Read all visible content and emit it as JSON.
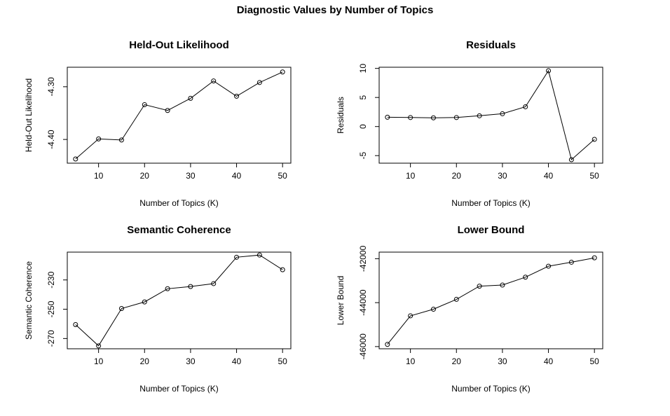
{
  "figure": {
    "title": "Diagnostic Values by Number of Topics"
  },
  "chart_data": [
    {
      "type": "line",
      "title": "Held-Out Likelihood",
      "xlabel": "Number of Topics (K)",
      "ylabel": "Held-Out Likelihood",
      "x": [
        5,
        10,
        15,
        20,
        25,
        30,
        35,
        40,
        45,
        50
      ],
      "values": [
        -4.437,
        -4.399,
        -4.401,
        -4.334,
        -4.345,
        -4.322,
        -4.289,
        -4.318,
        -4.292,
        -4.272
      ],
      "xlim": [
        3.2,
        51.8
      ],
      "ylim": [
        -4.445,
        -4.263
      ],
      "xticks": [
        10,
        20,
        30,
        40,
        50
      ],
      "yticks": [
        -4.4,
        -4.3
      ],
      "ytick_labels": [
        "-4.40",
        "-4.30"
      ],
      "legend": "none",
      "grid": false
    },
    {
      "type": "line",
      "title": "Residuals",
      "xlabel": "Number of Topics (K)",
      "ylabel": "Residuals",
      "x": [
        5,
        10,
        15,
        20,
        25,
        30,
        35,
        40,
        45,
        50
      ],
      "values": [
        1.6,
        1.55,
        1.5,
        1.55,
        1.85,
        2.2,
        3.4,
        9.6,
        -5.7,
        -2.2
      ],
      "xlim": [
        3.2,
        51.8
      ],
      "ylim": [
        -6.3,
        10.2
      ],
      "xticks": [
        10,
        20,
        30,
        40,
        50
      ],
      "yticks": [
        -5,
        0,
        5,
        10
      ],
      "ytick_labels": [
        "-5",
        "0",
        "5",
        "10"
      ],
      "legend": "none",
      "grid": false
    },
    {
      "type": "line",
      "title": "Semantic Coherence",
      "xlabel": "Number of Topics (K)",
      "ylabel": "Semantic Coherence",
      "x": [
        5,
        10,
        15,
        20,
        25,
        30,
        35,
        40,
        45,
        50
      ],
      "values": [
        -260.5,
        -275.0,
        -249.5,
        -245.0,
        -236.0,
        -234.5,
        -232.5,
        -214.5,
        -213.0,
        -223.0
      ],
      "xlim": [
        3.2,
        51.8
      ],
      "ylim": [
        -277.0,
        -211.0
      ],
      "xticks": [
        10,
        20,
        30,
        40,
        50
      ],
      "yticks": [
        -270,
        -250,
        -230
      ],
      "ytick_labels": [
        "-270",
        "-250",
        "-230"
      ],
      "legend": "none",
      "grid": false
    },
    {
      "type": "line",
      "title": "Lower Bound",
      "xlabel": "Number of Topics (K)",
      "ylabel": "Lower Bound",
      "x": [
        5,
        10,
        15,
        20,
        25,
        30,
        35,
        40,
        45,
        50
      ],
      "values": [
        -45900,
        -44600,
        -44300,
        -43850,
        -43250,
        -43200,
        -42840,
        -42340,
        -42160,
        -41960
      ],
      "xlim": [
        3.2,
        51.8
      ],
      "ylim": [
        -46100,
        -41700
      ],
      "xticks": [
        10,
        20,
        30,
        40,
        50
      ],
      "yticks": [
        -46000,
        -44000,
        -42000
      ],
      "ytick_labels": [
        "-46000",
        "-44000",
        "-42000"
      ],
      "legend": "none",
      "grid": false
    }
  ]
}
